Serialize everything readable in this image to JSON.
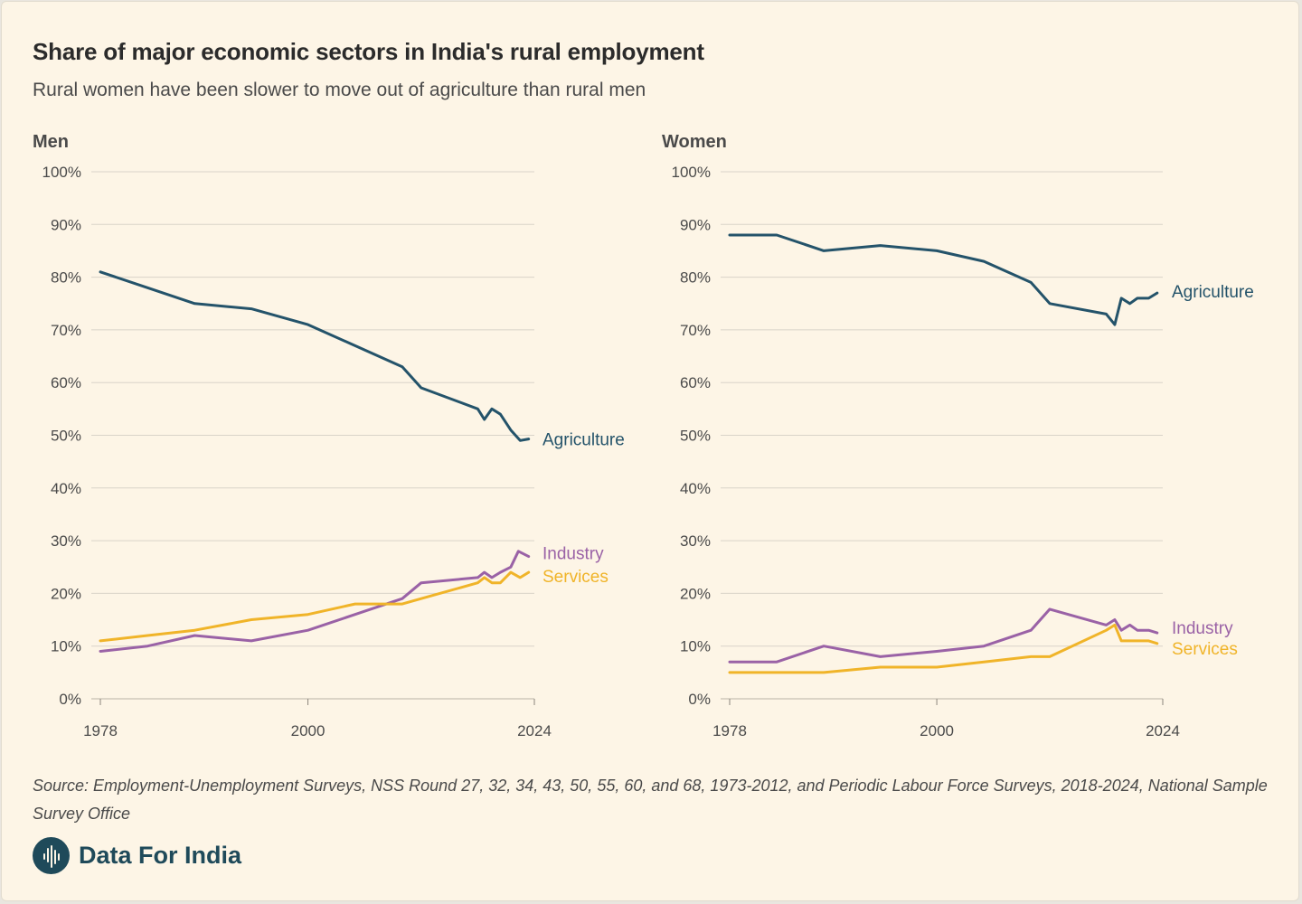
{
  "header": {
    "title": "Share of major economic sectors in India's rural employment",
    "subtitle": "Rural women have been slower to move out of agriculture than rural men"
  },
  "footer": {
    "source": "Source: Employment-Unemployment Surveys, NSS Round 27, 32, 34, 43, 50, 55, 60, and 68, 1973-2012, and Periodic Labour Force Surveys, 2018-2024, National Sample Survey Office",
    "brand": "Data For India"
  },
  "colors": {
    "agriculture": "#24536a",
    "industry": "#9a62a6",
    "services": "#f0b429",
    "grid": "#d9d4c9",
    "axis_text": "#4a4a4a"
  },
  "chart_data": [
    {
      "type": "line",
      "title": "Men",
      "xlabel": "",
      "ylabel": "",
      "xlim": [
        1978,
        2024
      ],
      "ylim": [
        0,
        100
      ],
      "x_ticks": [
        1978,
        2000,
        2024
      ],
      "x_tick_labels": [
        "1978",
        "2000",
        "2024"
      ],
      "y_ticks": [
        0,
        10,
        20,
        30,
        40,
        50,
        60,
        70,
        80,
        90,
        100
      ],
      "y_tick_labels": [
        "0%",
        "10%",
        "20%",
        "30%",
        "40%",
        "50%",
        "60%",
        "70%",
        "80%",
        "90%",
        "100%"
      ],
      "grid": true,
      "series": [
        {
          "name": "Agriculture",
          "color_key": "agriculture",
          "points": [
            [
              1978,
              81
            ],
            [
              1983,
              78
            ],
            [
              1988,
              75
            ],
            [
              1994,
              74
            ],
            [
              2000,
              71
            ],
            [
              2005,
              67
            ],
            [
              2010,
              63
            ],
            [
              2012,
              59
            ],
            [
              2018,
              55
            ],
            [
              2018.7,
              53
            ],
            [
              2019.5,
              55
            ],
            [
              2020.4,
              54
            ],
            [
              2021.5,
              51
            ],
            [
              2022.5,
              49
            ],
            [
              2023.4,
              49.3
            ]
          ]
        },
        {
          "name": "Industry",
          "color_key": "industry",
          "points": [
            [
              1978,
              9
            ],
            [
              1983,
              10
            ],
            [
              1988,
              12
            ],
            [
              1994,
              11
            ],
            [
              2000,
              13
            ],
            [
              2005,
              16
            ],
            [
              2010,
              19
            ],
            [
              2012,
              22
            ],
            [
              2018,
              23
            ],
            [
              2018.7,
              24
            ],
            [
              2019.5,
              23
            ],
            [
              2020.4,
              24
            ],
            [
              2021.5,
              25
            ],
            [
              2022.3,
              28
            ],
            [
              2023.4,
              27
            ]
          ]
        },
        {
          "name": "Services",
          "color_key": "services",
          "points": [
            [
              1978,
              11
            ],
            [
              1983,
              12
            ],
            [
              1988,
              13
            ],
            [
              1994,
              15
            ],
            [
              2000,
              16
            ],
            [
              2005,
              18
            ],
            [
              2010,
              18
            ],
            [
              2012,
              19
            ],
            [
              2018,
              22
            ],
            [
              2018.7,
              23
            ],
            [
              2019.5,
              22
            ],
            [
              2020.4,
              22
            ],
            [
              2021.5,
              24
            ],
            [
              2022.5,
              23
            ],
            [
              2023.4,
              24
            ]
          ]
        }
      ]
    },
    {
      "type": "line",
      "title": "Women",
      "xlabel": "",
      "ylabel": "",
      "xlim": [
        1978,
        2024
      ],
      "ylim": [
        0,
        100
      ],
      "x_ticks": [
        1978,
        2000,
        2024
      ],
      "x_tick_labels": [
        "1978",
        "2000",
        "2024"
      ],
      "y_ticks": [
        0,
        10,
        20,
        30,
        40,
        50,
        60,
        70,
        80,
        90,
        100
      ],
      "y_tick_labels": [
        "0%",
        "10%",
        "20%",
        "30%",
        "40%",
        "50%",
        "60%",
        "70%",
        "80%",
        "90%",
        "100%"
      ],
      "grid": true,
      "series": [
        {
          "name": "Agriculture",
          "color_key": "agriculture",
          "points": [
            [
              1978,
              88
            ],
            [
              1983,
              88
            ],
            [
              1988,
              85
            ],
            [
              1994,
              86
            ],
            [
              2000,
              85
            ],
            [
              2005,
              83
            ],
            [
              2010,
              79
            ],
            [
              2012,
              75
            ],
            [
              2018,
              73
            ],
            [
              2018.9,
              71
            ],
            [
              2019.6,
              76
            ],
            [
              2020.5,
              75
            ],
            [
              2021.3,
              76
            ],
            [
              2022.5,
              76
            ],
            [
              2023.4,
              77
            ]
          ]
        },
        {
          "name": "Industry",
          "color_key": "industry",
          "points": [
            [
              1978,
              7
            ],
            [
              1983,
              7
            ],
            [
              1988,
              10
            ],
            [
              1994,
              8
            ],
            [
              2000,
              9
            ],
            [
              2005,
              10
            ],
            [
              2010,
              13
            ],
            [
              2012,
              17
            ],
            [
              2018,
              14
            ],
            [
              2018.9,
              15
            ],
            [
              2019.6,
              13
            ],
            [
              2020.5,
              14
            ],
            [
              2021.3,
              13
            ],
            [
              2022.5,
              13
            ],
            [
              2023.4,
              12.5
            ]
          ]
        },
        {
          "name": "Services",
          "color_key": "services",
          "points": [
            [
              1978,
              5
            ],
            [
              1983,
              5
            ],
            [
              1988,
              5
            ],
            [
              1994,
              6
            ],
            [
              2000,
              6
            ],
            [
              2005,
              7
            ],
            [
              2010,
              8
            ],
            [
              2012,
              8
            ],
            [
              2018,
              13
            ],
            [
              2018.9,
              14
            ],
            [
              2019.6,
              11
            ],
            [
              2020.5,
              11
            ],
            [
              2021.3,
              11
            ],
            [
              2022.5,
              11
            ],
            [
              2023.4,
              10.5
            ]
          ]
        }
      ]
    }
  ]
}
